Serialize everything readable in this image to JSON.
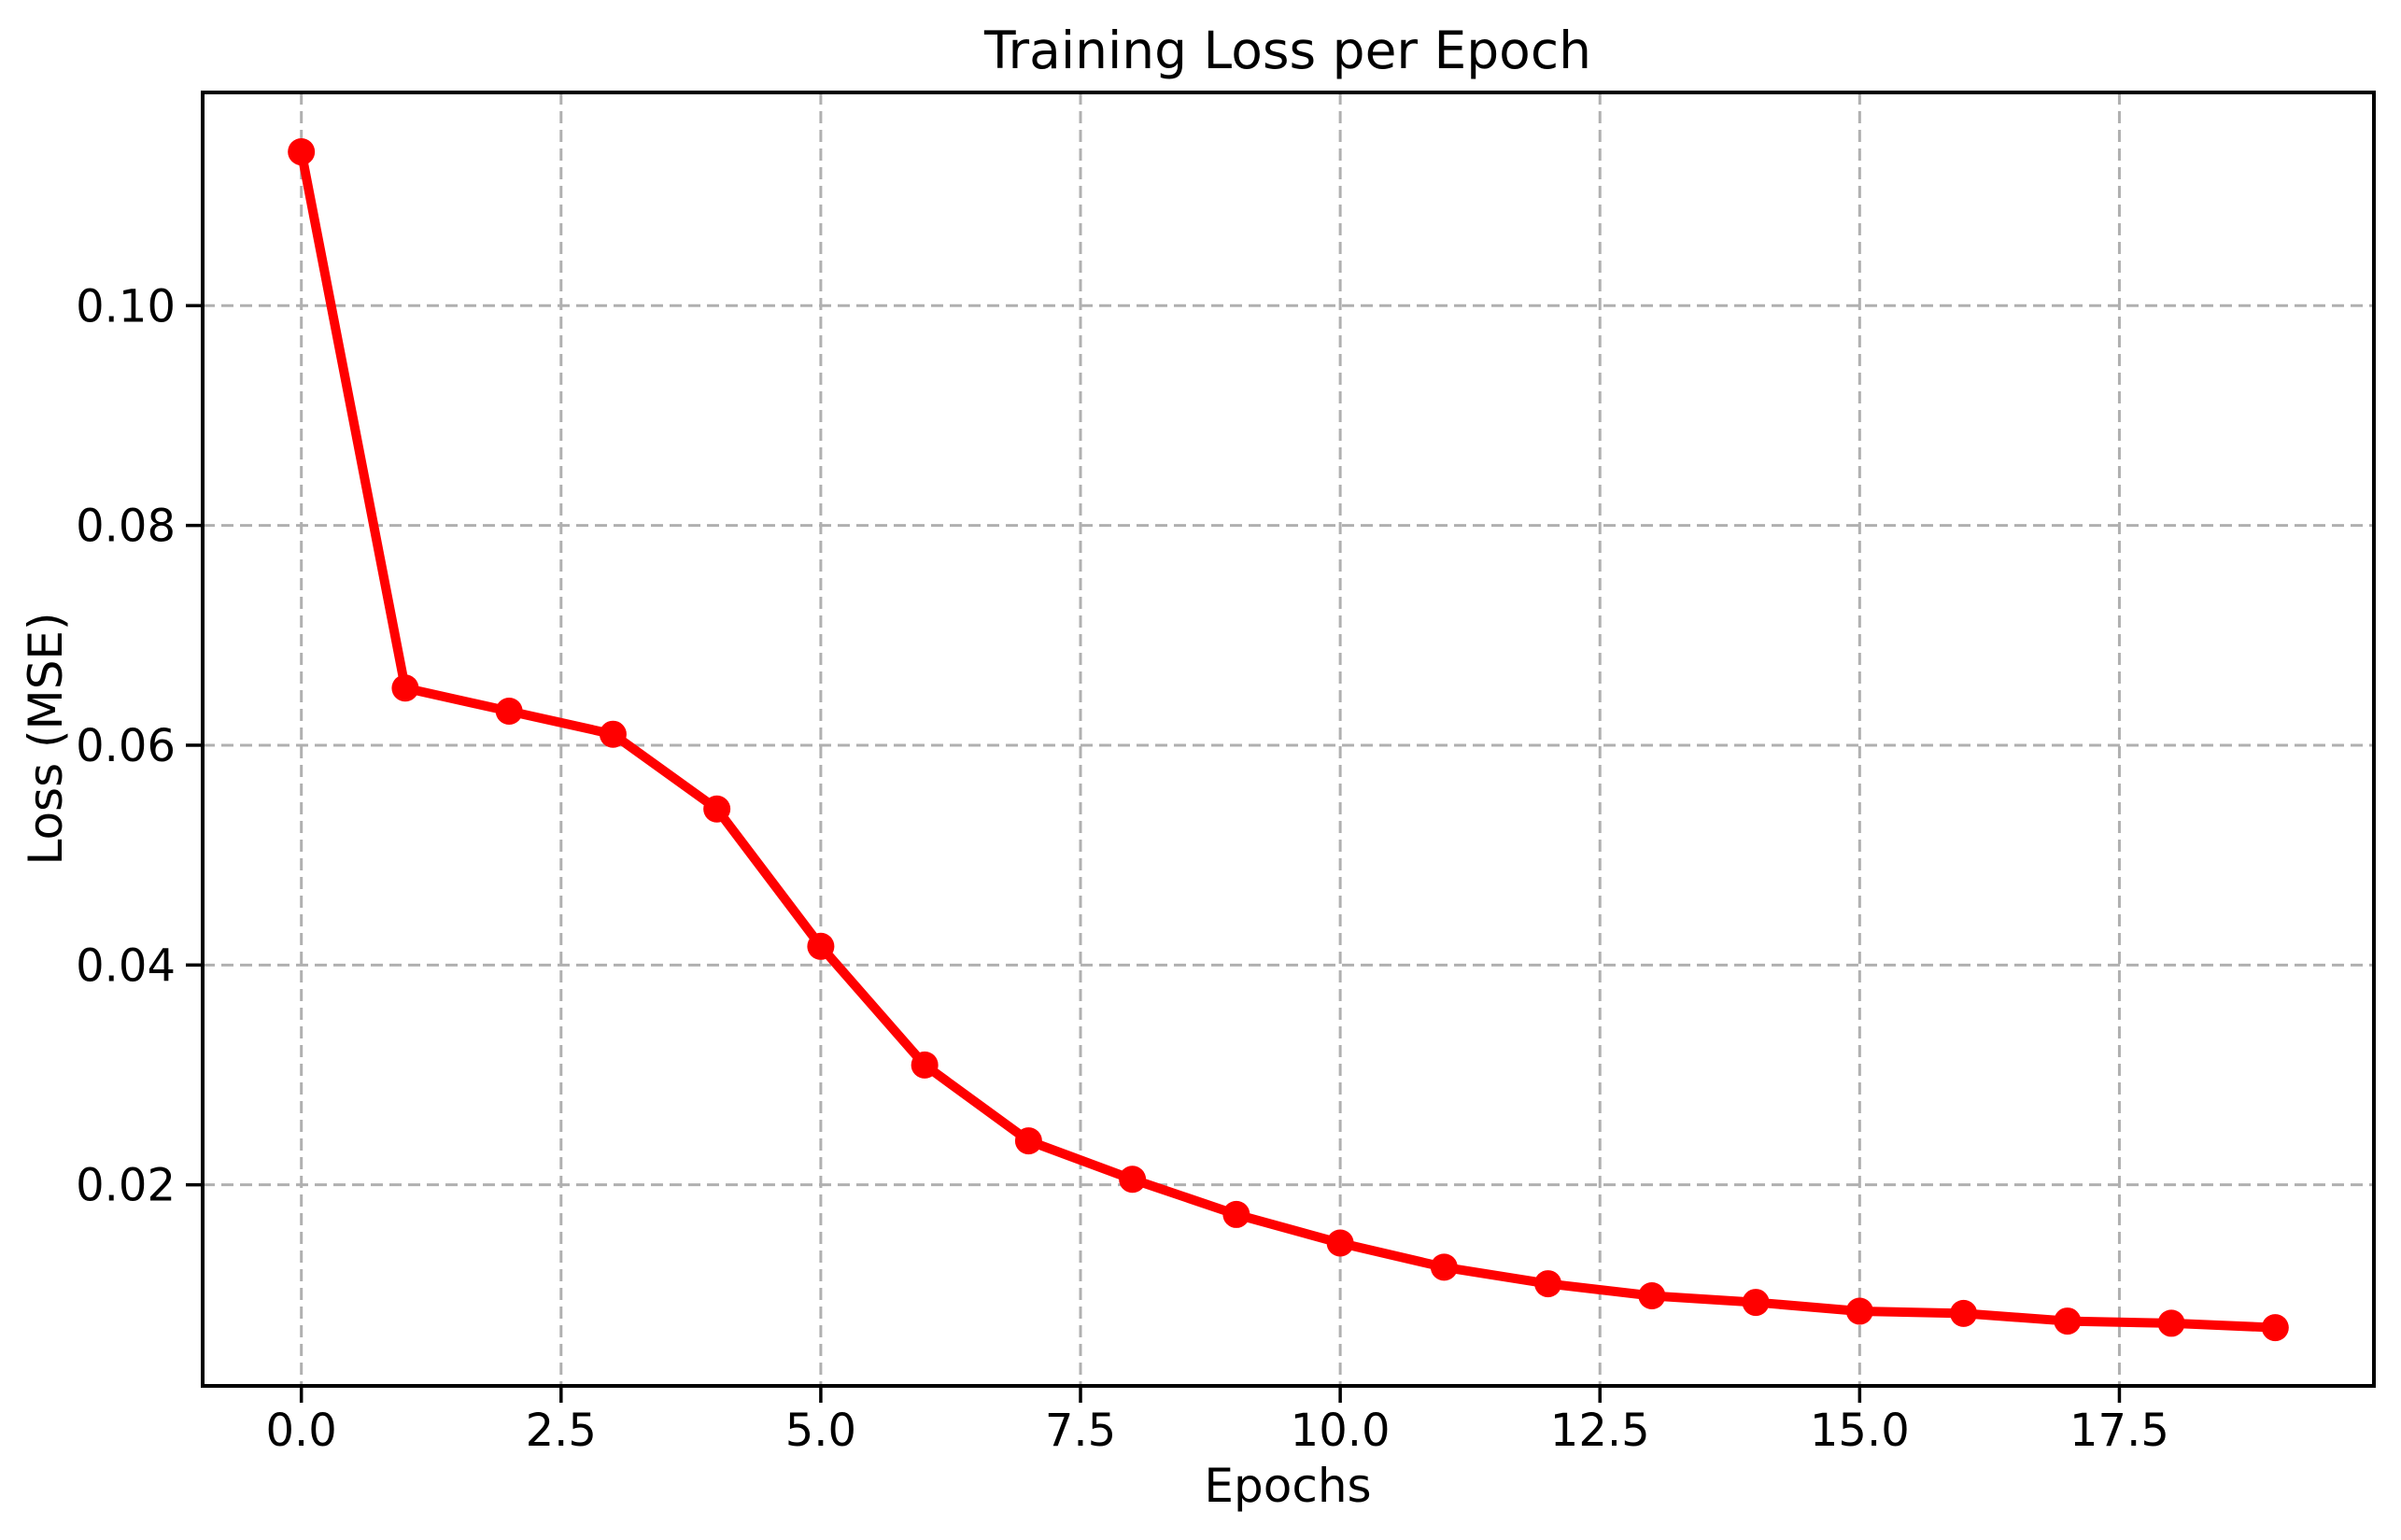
{
  "figure": {
    "background": "#ffffff",
    "text_color": "#000000"
  },
  "chart_data": {
    "type": "line",
    "title": "Training Loss per Epoch",
    "xlabel": "Epochs",
    "ylabel": "Loss (MSE)",
    "legend": "none",
    "grid": {
      "visible": true,
      "style": "dashed",
      "color": "#b0b0b0"
    },
    "axis_color": "#000000",
    "xlim": [
      -0.95,
      19.95
    ],
    "ylim": [
      0.0017,
      0.1194
    ],
    "xticks": {
      "values": [
        0,
        2.5,
        5,
        7.5,
        10,
        12.5,
        15,
        17.5
      ],
      "labels": [
        "0.0",
        "2.5",
        "5.0",
        "7.5",
        "10.0",
        "12.5",
        "15.0",
        "17.5"
      ]
    },
    "yticks": {
      "values": [
        0.02,
        0.04,
        0.06,
        0.08,
        0.1
      ],
      "labels": [
        "0.02",
        "0.04",
        "0.06",
        "0.08",
        "0.10"
      ]
    },
    "series": [
      {
        "name": "training-loss",
        "color": "#ff0000",
        "marker": "circle",
        "x": [
          0,
          1,
          2,
          3,
          4,
          5,
          6,
          7,
          8,
          9,
          10,
          11,
          12,
          13,
          14,
          15,
          16,
          17,
          18,
          19
        ],
        "y": [
          0.114,
          0.0652,
          0.0631,
          0.061,
          0.0542,
          0.0417,
          0.0309,
          0.024,
          0.0205,
          0.0173,
          0.0147,
          0.0125,
          0.011,
          0.0099,
          0.0093,
          0.0085,
          0.0083,
          0.0076,
          0.0074,
          0.007
        ]
      }
    ]
  }
}
